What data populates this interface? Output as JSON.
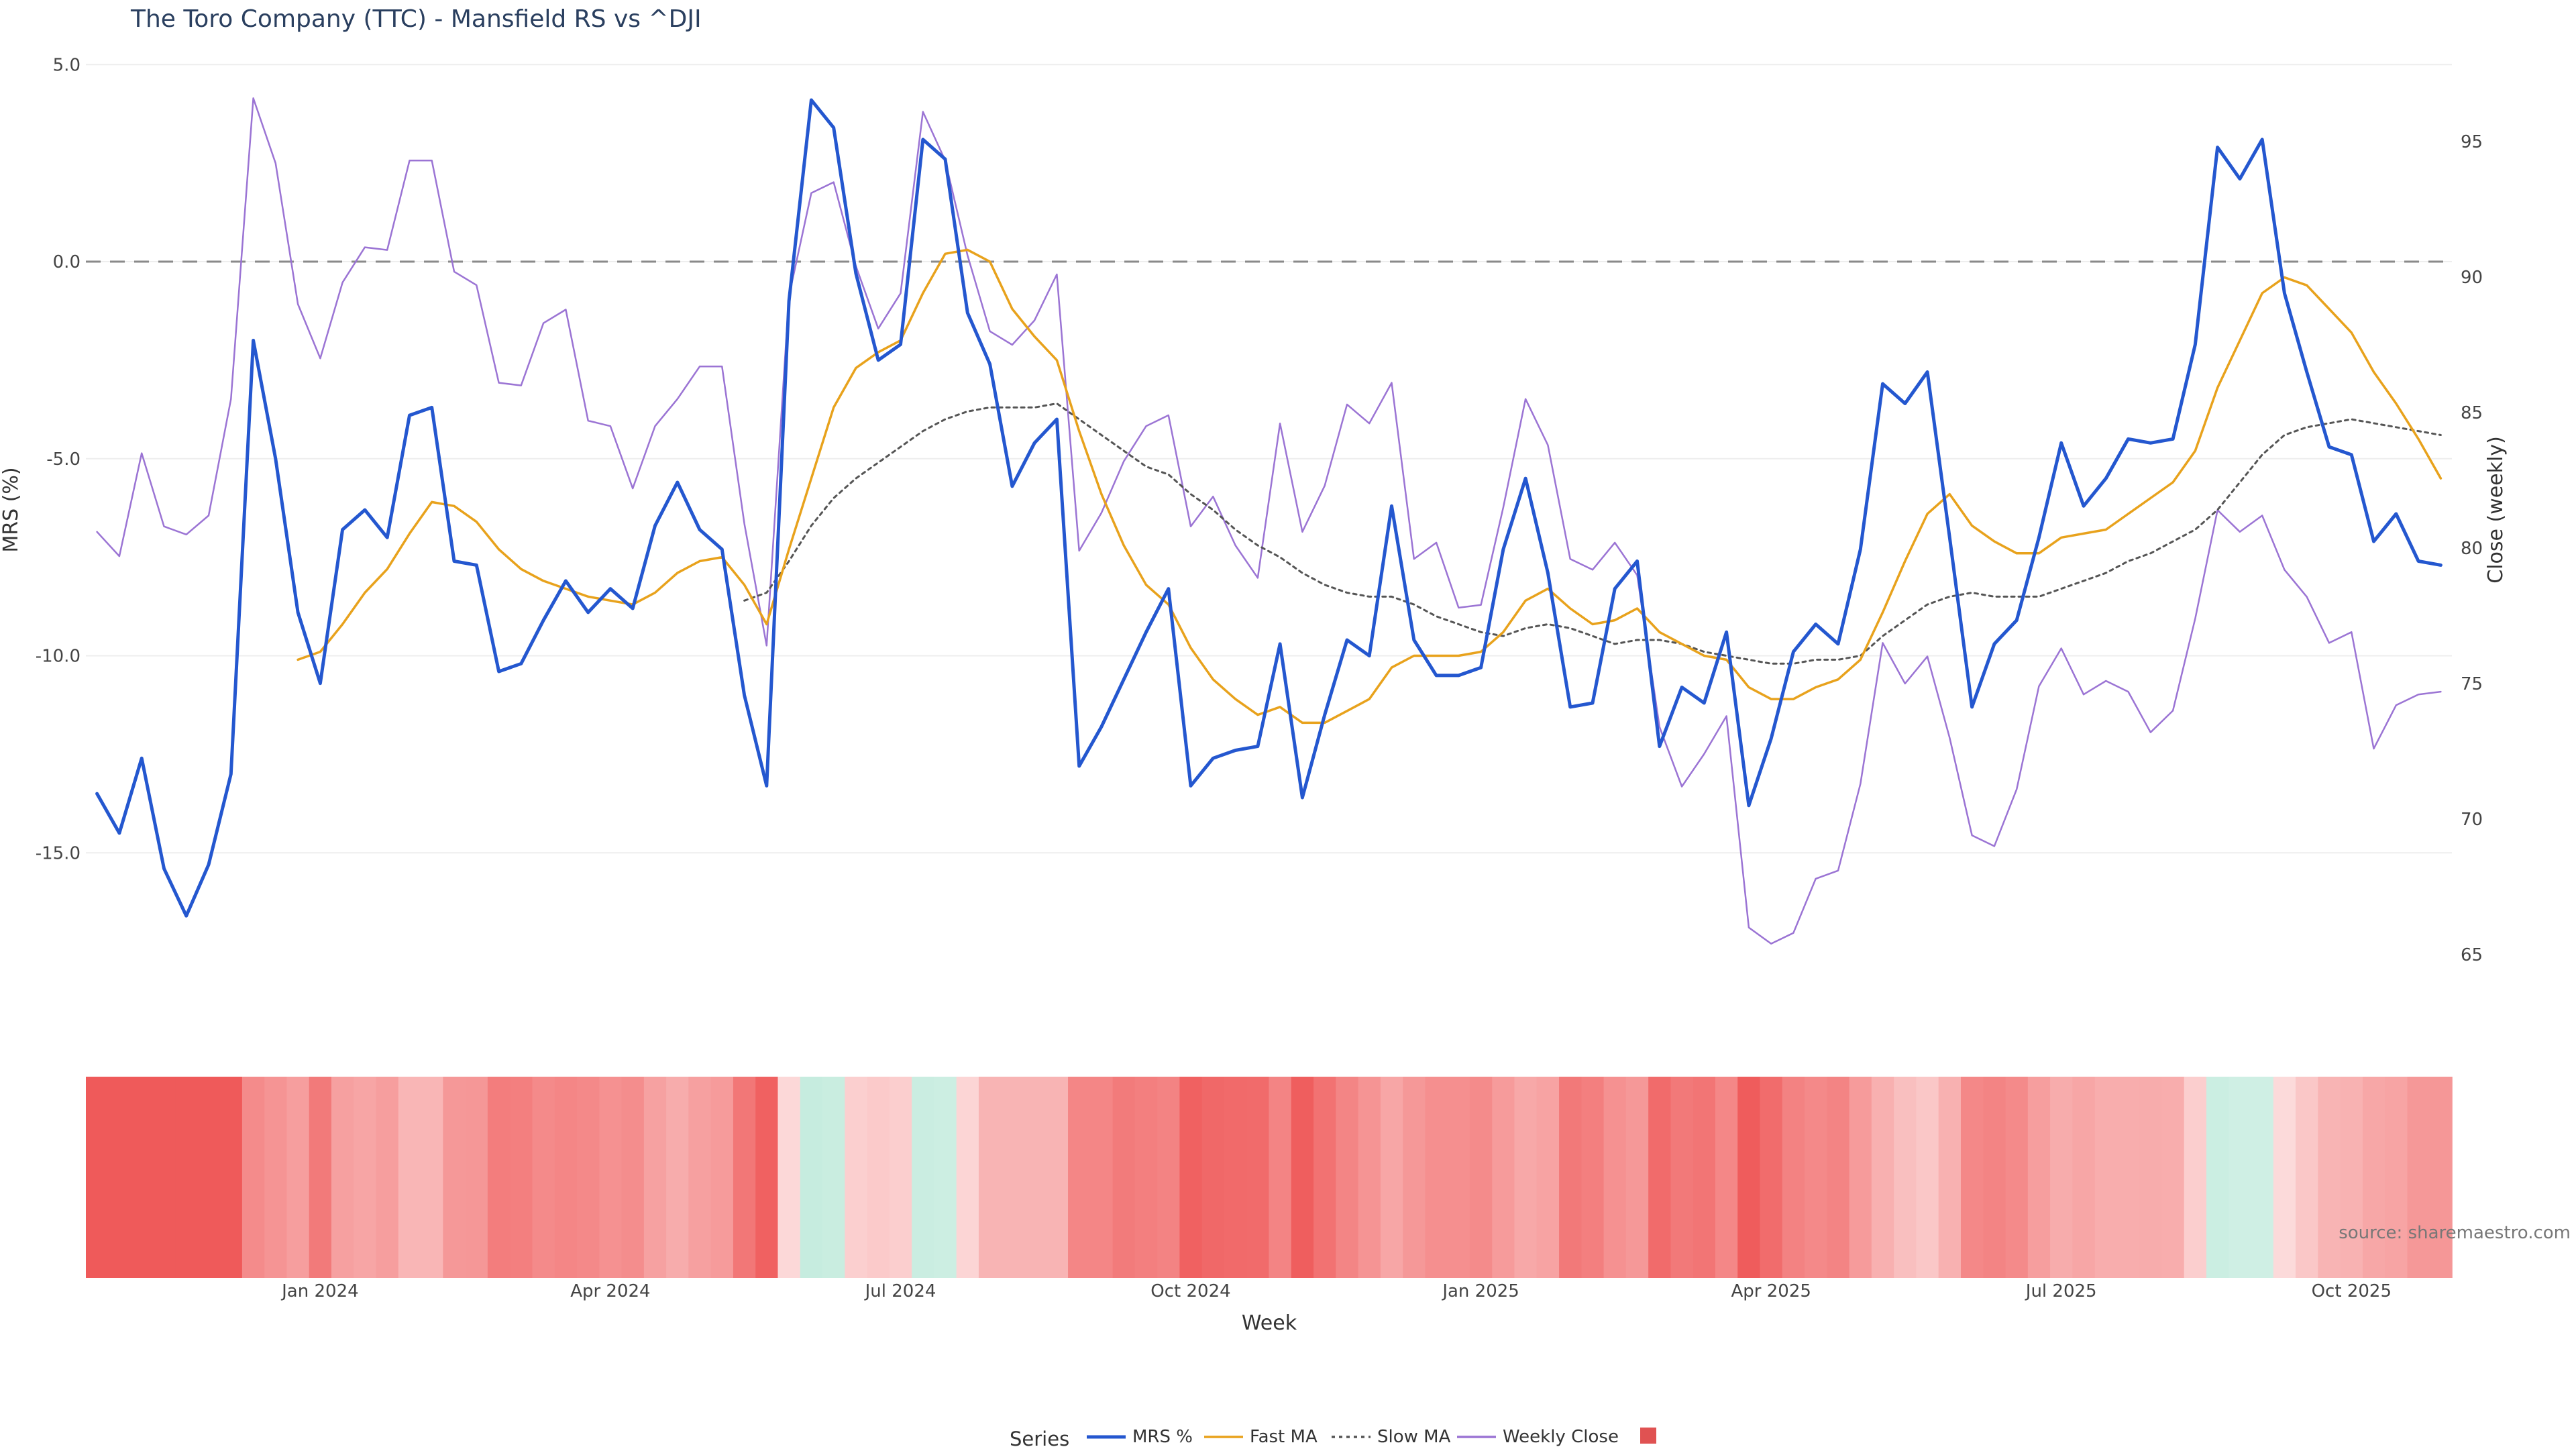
{
  "chart_data": {
    "type": "line",
    "title": "The Toro Company (TTC) - Mansfield RS vs ^DJI",
    "xlabel": "Week",
    "ylabel_left": "MRS (%)",
    "ylabel_right": "Close (weekly)",
    "ylim_left": [
      -18.5,
      5.0
    ],
    "ylim_right": [
      62,
      97.5
    ],
    "left_ticks": [
      "5.0",
      "0.0",
      "-5.0",
      "-10.0",
      "-15.0"
    ],
    "right_ticks": [
      "95",
      "90",
      "85",
      "80",
      "75",
      "70",
      "65"
    ],
    "x_ticks": [
      {
        "label": "Jan 2024",
        "week": 10
      },
      {
        "label": "Apr 2024",
        "week": 23
      },
      {
        "label": "Jul 2024",
        "week": 36
      },
      {
        "label": "Oct 2024",
        "week": 49
      },
      {
        "label": "Jan 2025",
        "week": 62
      },
      {
        "label": "Apr 2025",
        "week": 75
      },
      {
        "label": "Jul 2025",
        "week": 88
      },
      {
        "label": "Oct 2025",
        "week": 101
      }
    ],
    "zero_line": 0.0,
    "source": "source: sharemaestro.com",
    "legend_title": "Series",
    "series": [
      {
        "name": "MRS %",
        "color": "#2457cf",
        "values": [
          -13.5,
          -14.5,
          -12.6,
          -15.4,
          -16.6,
          -15.3,
          -13.0,
          -2.0,
          -5.0,
          -8.9,
          -10.7,
          -6.8,
          -6.3,
          -7.0,
          -3.9,
          -3.7,
          -7.6,
          -7.7,
          -10.4,
          -10.2,
          -9.1,
          -8.1,
          -8.9,
          -8.3,
          -8.8,
          -6.7,
          -5.6,
          -6.8,
          -7.3,
          -11.0,
          -13.3,
          -1.0,
          4.1,
          3.4,
          -0.3,
          -2.5,
          -2.1,
          3.1,
          2.6,
          -1.3,
          -2.6,
          -5.7,
          -4.6,
          -4.0,
          -12.8,
          -11.8,
          -10.6,
          -9.4,
          -8.3,
          -13.3,
          -12.6,
          -12.4,
          -12.3,
          -9.7,
          -13.6,
          -11.5,
          -9.6,
          -10.0,
          -6.2,
          -9.6,
          -10.5,
          -10.5,
          -10.3,
          -7.3,
          -5.5,
          -7.9,
          -11.3,
          -11.2,
          -8.3,
          -7.6,
          -12.3,
          -10.8,
          -11.2,
          -9.4,
          -13.8,
          -12.1,
          -9.9,
          -9.2,
          -9.7,
          -7.3,
          -3.1,
          -3.6,
          -2.8,
          -7.0,
          -11.3,
          -9.7,
          -9.1,
          -7.0,
          -4.6,
          -6.2,
          -5.5,
          -4.5,
          -4.6,
          -4.5,
          -2.1,
          2.9,
          2.1,
          3.1,
          -0.8,
          -2.8,
          -4.7,
          -4.9,
          -7.1,
          -6.4,
          -7.6,
          -7.7
        ]
      },
      {
        "name": "Fast MA",
        "color": "#e8a21c",
        "start_week": 9,
        "values": [
          -10.1,
          -9.9,
          -9.2,
          -8.4,
          -7.8,
          -6.9,
          -6.1,
          -6.2,
          -6.6,
          -7.3,
          -7.8,
          -8.1,
          -8.3,
          -8.5,
          -8.6,
          -8.7,
          -8.4,
          -7.9,
          -7.6,
          -7.5,
          -8.2,
          -9.2,
          -7.3,
          -5.5,
          -3.7,
          -2.7,
          -2.3,
          -2.0,
          -0.8,
          0.2,
          0.3,
          0.0,
          -1.2,
          -1.9,
          -2.5,
          -4.3,
          -5.9,
          -7.2,
          -8.2,
          -8.7,
          -9.8,
          -10.6,
          -11.1,
          -11.5,
          -11.3,
          -11.7,
          -11.7,
          -11.4,
          -11.1,
          -10.3,
          -10.0,
          -10.0,
          -10.0,
          -9.9,
          -9.4,
          -8.6,
          -8.3,
          -8.8,
          -9.2,
          -9.1,
          -8.8,
          -9.4,
          -9.7,
          -10.0,
          -10.1,
          -10.8,
          -11.1,
          -11.1,
          -10.8,
          -10.6,
          -10.1,
          -8.9,
          -7.6,
          -6.4,
          -5.9,
          -6.7,
          -7.1,
          -7.4,
          -7.4,
          -7.0,
          -6.9,
          -6.8,
          -6.4,
          -6.0,
          -5.6,
          -4.8,
          -3.2,
          -2.0,
          -0.8,
          -0.4,
          -0.6,
          -1.2,
          -1.8,
          -2.8,
          -3.6,
          -4.5,
          -5.5
        ]
      },
      {
        "name": "Slow MA",
        "color": "#555555",
        "start_week": 29,
        "values": [
          -8.6,
          -8.4,
          -7.6,
          -6.7,
          -6.0,
          -5.5,
          -5.1,
          -4.7,
          -4.3,
          -4.0,
          -3.8,
          -3.7,
          -3.7,
          -3.7,
          -3.6,
          -4.0,
          -4.4,
          -4.8,
          -5.2,
          -5.4,
          -5.9,
          -6.3,
          -6.8,
          -7.2,
          -7.5,
          -7.9,
          -8.2,
          -8.4,
          -8.5,
          -8.5,
          -8.7,
          -9.0,
          -9.2,
          -9.4,
          -9.5,
          -9.3,
          -9.2,
          -9.3,
          -9.5,
          -9.7,
          -9.6,
          -9.6,
          -9.7,
          -9.9,
          -10.0,
          -10.1,
          -10.2,
          -10.2,
          -10.1,
          -10.1,
          -10.0,
          -9.5,
          -9.1,
          -8.7,
          -8.5,
          -8.4,
          -8.5,
          -8.5,
          -8.5,
          -8.3,
          -8.1,
          -7.9,
          -7.6,
          -7.4,
          -7.1,
          -6.8,
          -6.3,
          -5.6,
          -4.9,
          -4.4,
          -4.2,
          -4.1,
          -4.0,
          -4.1,
          -4.2,
          -4.3,
          -4.4
        ]
      },
      {
        "name": "Weekly Close",
        "color": "#9b74d4",
        "values": [
          80.6,
          79.7,
          83.5,
          80.8,
          80.5,
          81.2,
          85.5,
          96.6,
          94.2,
          89.0,
          87.0,
          89.8,
          91.1,
          91.0,
          94.3,
          94.3,
          90.2,
          89.7,
          86.1,
          86.0,
          88.3,
          88.8,
          84.7,
          84.5,
          82.2,
          84.5,
          85.5,
          86.7,
          86.7,
          80.9,
          76.4,
          89.3,
          93.1,
          93.5,
          90.4,
          88.1,
          89.4,
          96.1,
          94.3,
          90.8,
          88.0,
          87.5,
          88.4,
          90.1,
          79.9,
          81.3,
          83.2,
          84.5,
          84.9,
          80.8,
          81.9,
          80.1,
          78.9,
          84.6,
          80.6,
          82.3,
          85.3,
          84.6,
          86.1,
          79.6,
          80.2,
          77.8,
          77.9,
          81.5,
          85.5,
          83.8,
          79.6,
          79.2,
          80.2,
          79.0,
          73.4,
          71.2,
          72.4,
          73.8,
          66.0,
          65.4,
          65.8,
          67.8,
          68.1,
          71.3,
          76.5,
          75.0,
          76.0,
          73.0,
          69.4,
          69.0,
          71.1,
          74.9,
          76.3,
          74.6,
          75.1,
          74.7,
          73.2,
          74.0,
          77.4,
          81.4,
          80.6,
          81.2,
          79.2,
          78.2,
          76.5,
          76.9,
          72.6,
          74.2,
          74.6,
          74.7
        ]
      }
    ],
    "heat_strip": {
      "values": [
        -16.6,
        -16.6,
        -16.6,
        -16.6,
        -16.6,
        -16.6,
        -16.6,
        -9.0,
        -8.0,
        -7.0,
        -10.7,
        -6.8,
        -6.3,
        -7.0,
        -4.5,
        -4.5,
        -7.6,
        -7.7,
        -10.4,
        -10.2,
        -9.1,
        -9.5,
        -9.2,
        -8.3,
        -8.8,
        -6.7,
        -5.6,
        -6.8,
        -7.3,
        -11.0,
        -13.3,
        -1.0,
        4.1,
        3.4,
        -2.0,
        -2.5,
        -2.1,
        3.1,
        2.6,
        -1.3,
        -4.7,
        -4.7,
        -4.7,
        -4.7,
        -9.5,
        -9.5,
        -10.6,
        -10.2,
        -9.8,
        -13.3,
        -12.6,
        -12.4,
        -12.3,
        -9.7,
        -13.6,
        -11.5,
        -9.6,
        -8.0,
        -6.2,
        -7.6,
        -8.5,
        -8.5,
        -9.0,
        -7.3,
        -6.0,
        -6.5,
        -10.8,
        -10.2,
        -8.3,
        -7.6,
        -12.3,
        -10.8,
        -11.2,
        -9.4,
        -13.8,
        -12.1,
        -9.9,
        -9.2,
        -9.7,
        -7.3,
        -5.1,
        -3.6,
        -2.8,
        -5.0,
        -9.3,
        -9.7,
        -9.1,
        -7.0,
        -5.6,
        -6.2,
        -5.5,
        -5.5,
        -5.6,
        -5.5,
        -2.1,
        2.9,
        2.1,
        2.1,
        -0.8,
        -2.8,
        -4.7,
        -4.9,
        -6.1,
        -6.4,
        -7.6,
        -7.7
      ],
      "negative_color": "#ef5a5a",
      "positive_color": "#c6ecdf"
    }
  },
  "legend": {
    "title": "Series",
    "items": [
      {
        "label": "MRS %",
        "color": "#2457cf",
        "style": "solid"
      },
      {
        "label": "Fast MA",
        "color": "#e8a21c",
        "style": "solid"
      },
      {
        "label": "Slow MA",
        "color": "#555555",
        "style": "dotted"
      },
      {
        "label": "Weekly Close",
        "color": "#9b74d4",
        "style": "solid"
      },
      {
        "label": "",
        "color": "#e05252",
        "style": "swatch"
      }
    ]
  }
}
